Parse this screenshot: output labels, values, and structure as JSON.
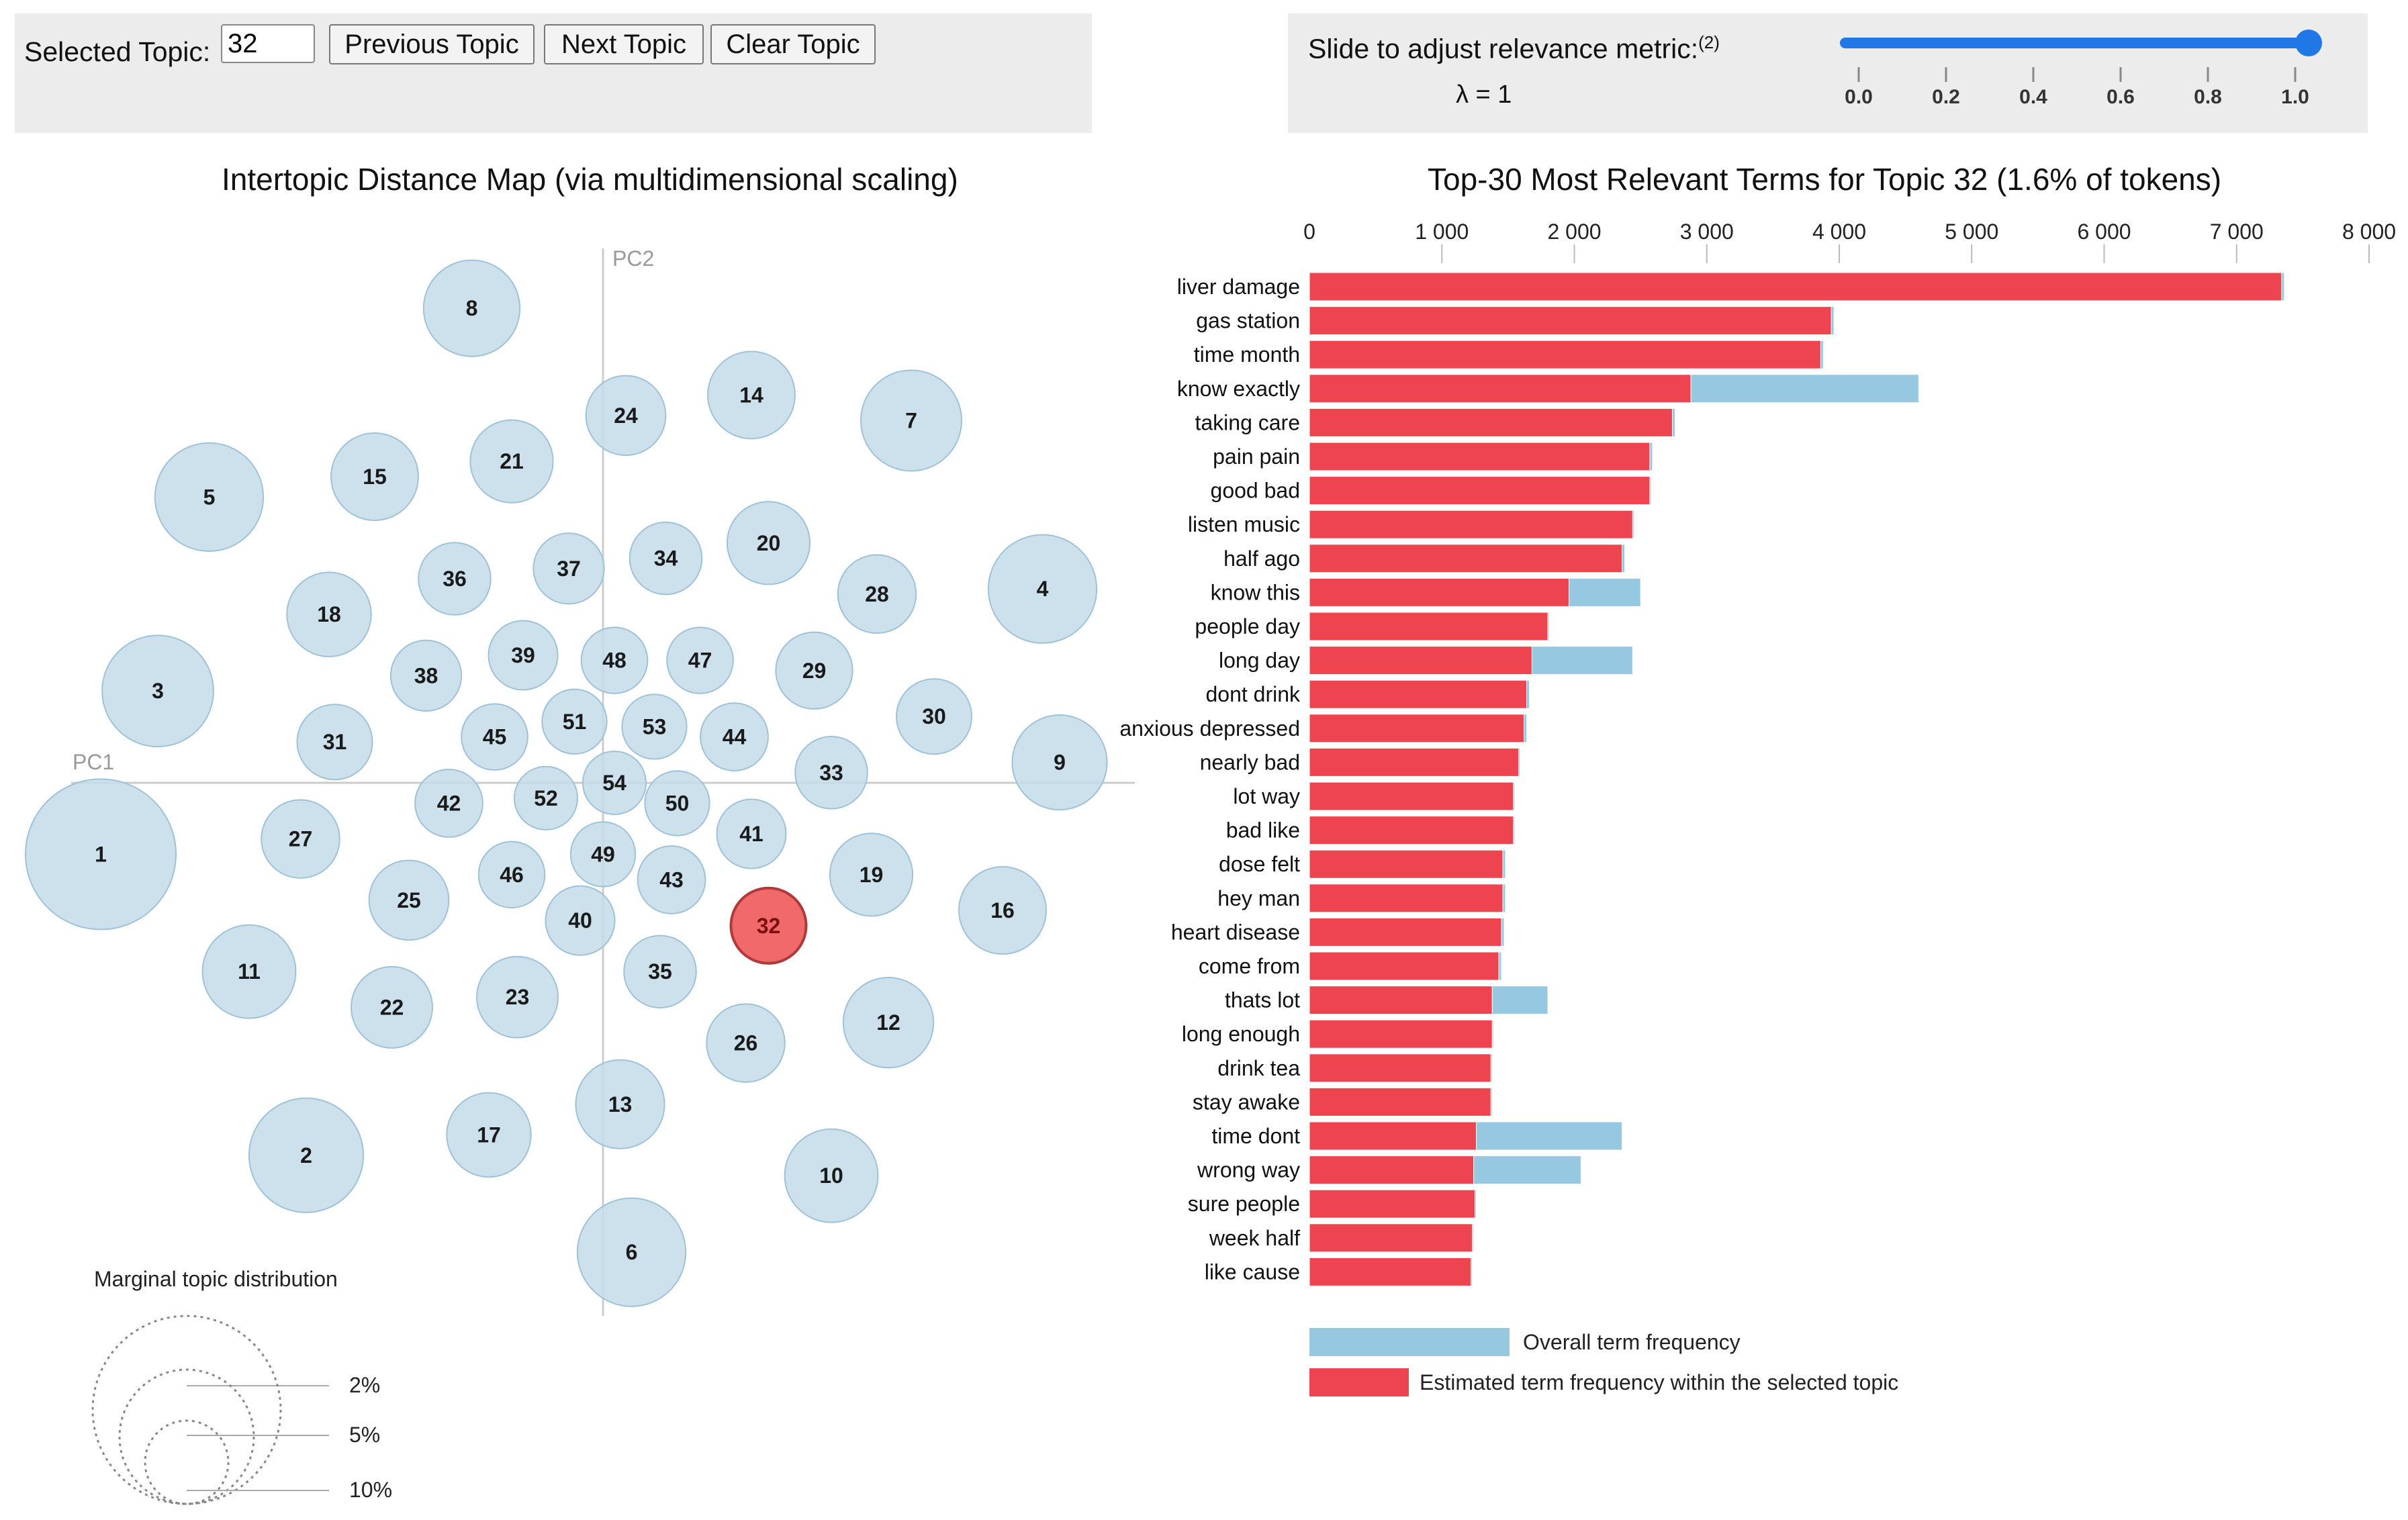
{
  "controls": {
    "selected_topic_label": "Selected Topic:",
    "selected_topic_value": "32",
    "previous_label": "Previous Topic",
    "next_label": "Next Topic",
    "clear_label": "Clear Topic",
    "slider_label": "Slide to adjust relevance metric:",
    "slider_footnote": "(2)",
    "lambda_text": "λ = 1",
    "slider_value": 1.0,
    "slider_ticks": [
      "0.0",
      "0.2",
      "0.4",
      "0.6",
      "0.8",
      "1.0"
    ]
  },
  "chart_data": [
    {
      "type": "scatter",
      "title": "Intertopic Distance Map (via multidimensional scaling)",
      "xlabel": "PC1",
      "ylabel": "PC2",
      "xlim": [
        -1,
        1
      ],
      "ylim": [
        -1,
        1
      ],
      "selected_topic": "32",
      "colors": {
        "bubble": "#c4dcea",
        "bubble_stroke": "#9fc2d8",
        "selected": "#f06a6a",
        "selected_stroke": "#b03a3a",
        "axis": "#cccccc"
      },
      "topics": [
        {
          "id": "1",
          "x": -0.88,
          "y": -0.14,
          "r": 1.0
        },
        {
          "id": "2",
          "x": -0.52,
          "y": -0.73,
          "r": 0.76
        },
        {
          "id": "3",
          "x": -0.78,
          "y": 0.18,
          "r": 0.74
        },
        {
          "id": "4",
          "x": 0.77,
          "y": 0.38,
          "r": 0.72
        },
        {
          "id": "5",
          "x": -0.69,
          "y": 0.56,
          "r": 0.72
        },
        {
          "id": "6",
          "x": 0.05,
          "y": -0.92,
          "r": 0.72
        },
        {
          "id": "7",
          "x": 0.54,
          "y": 0.71,
          "r": 0.67
        },
        {
          "id": "8",
          "x": -0.23,
          "y": 0.93,
          "r": 0.64
        },
        {
          "id": "9",
          "x": 0.8,
          "y": 0.04,
          "r": 0.63
        },
        {
          "id": "10",
          "x": 0.4,
          "y": -0.77,
          "r": 0.62
        },
        {
          "id": "11",
          "x": -0.62,
          "y": -0.37,
          "r": 0.62
        },
        {
          "id": "12",
          "x": 0.5,
          "y": -0.47,
          "r": 0.6
        },
        {
          "id": "13",
          "x": 0.03,
          "y": -0.63,
          "r": 0.59
        },
        {
          "id": "14",
          "x": 0.26,
          "y": 0.76,
          "r": 0.58
        },
        {
          "id": "15",
          "x": -0.4,
          "y": 0.6,
          "r": 0.58
        },
        {
          "id": "16",
          "x": 0.7,
          "y": -0.25,
          "r": 0.58
        },
        {
          "id": "17",
          "x": -0.2,
          "y": -0.69,
          "r": 0.56
        },
        {
          "id": "18",
          "x": -0.48,
          "y": 0.33,
          "r": 0.56
        },
        {
          "id": "19",
          "x": 0.47,
          "y": -0.18,
          "r": 0.55
        },
        {
          "id": "20",
          "x": 0.29,
          "y": 0.47,
          "r": 0.55
        },
        {
          "id": "21",
          "x": -0.16,
          "y": 0.63,
          "r": 0.55
        },
        {
          "id": "22",
          "x": -0.37,
          "y": -0.44,
          "r": 0.54
        },
        {
          "id": "23",
          "x": -0.15,
          "y": -0.42,
          "r": 0.54
        },
        {
          "id": "24",
          "x": 0.04,
          "y": 0.72,
          "r": 0.53
        },
        {
          "id": "25",
          "x": -0.34,
          "y": -0.23,
          "r": 0.53
        },
        {
          "id": "26",
          "x": 0.25,
          "y": -0.51,
          "r": 0.52
        },
        {
          "id": "27",
          "x": -0.53,
          "y": -0.11,
          "r": 0.52
        },
        {
          "id": "28",
          "x": 0.48,
          "y": 0.37,
          "r": 0.52
        },
        {
          "id": "29",
          "x": 0.37,
          "y": 0.22,
          "r": 0.51
        },
        {
          "id": "30",
          "x": 0.58,
          "y": 0.13,
          "r": 0.5
        },
        {
          "id": "31",
          "x": -0.47,
          "y": 0.08,
          "r": 0.5
        },
        {
          "id": "32",
          "x": 0.29,
          "y": -0.28,
          "r": 0.5
        },
        {
          "id": "33",
          "x": 0.4,
          "y": 0.02,
          "r": 0.48
        },
        {
          "id": "34",
          "x": 0.11,
          "y": 0.44,
          "r": 0.48
        },
        {
          "id": "35",
          "x": 0.1,
          "y": -0.37,
          "r": 0.48
        },
        {
          "id": "36",
          "x": -0.26,
          "y": 0.4,
          "r": 0.48
        },
        {
          "id": "37",
          "x": -0.06,
          "y": 0.42,
          "r": 0.47
        },
        {
          "id": "38",
          "x": -0.31,
          "y": 0.21,
          "r": 0.47
        },
        {
          "id": "39",
          "x": -0.14,
          "y": 0.25,
          "r": 0.46
        },
        {
          "id": "40",
          "x": -0.04,
          "y": -0.27,
          "r": 0.46
        },
        {
          "id": "41",
          "x": 0.26,
          "y": -0.1,
          "r": 0.46
        },
        {
          "id": "42",
          "x": -0.27,
          "y": -0.04,
          "r": 0.45
        },
        {
          "id": "43",
          "x": 0.12,
          "y": -0.19,
          "r": 0.45
        },
        {
          "id": "44",
          "x": 0.23,
          "y": 0.09,
          "r": 0.45
        },
        {
          "id": "45",
          "x": -0.19,
          "y": 0.09,
          "r": 0.44
        },
        {
          "id": "46",
          "x": -0.16,
          "y": -0.18,
          "r": 0.44
        },
        {
          "id": "47",
          "x": 0.17,
          "y": 0.24,
          "r": 0.44
        },
        {
          "id": "48",
          "x": 0.02,
          "y": 0.24,
          "r": 0.44
        },
        {
          "id": "49",
          "x": 0.0,
          "y": -0.14,
          "r": 0.43
        },
        {
          "id": "50",
          "x": 0.13,
          "y": -0.04,
          "r": 0.43
        },
        {
          "id": "51",
          "x": -0.05,
          "y": 0.12,
          "r": 0.43
        },
        {
          "id": "52",
          "x": -0.1,
          "y": -0.03,
          "r": 0.42
        },
        {
          "id": "53",
          "x": 0.09,
          "y": 0.11,
          "r": 0.43
        },
        {
          "id": "54",
          "x": 0.02,
          "y": 0.0,
          "r": 0.42
        }
      ],
      "legend": {
        "title": "Marginal topic distribution",
        "levels": [
          "2%",
          "5%",
          "10%"
        ]
      }
    },
    {
      "type": "bar",
      "orientation": "horizontal",
      "title": "Top-30 Most Relevant Terms for Topic 32 (1.6% of tokens)",
      "xlim": [
        0,
        8000
      ],
      "x_ticks": [
        0,
        1000,
        2000,
        3000,
        4000,
        5000,
        6000,
        7000,
        8000
      ],
      "x_tick_labels": [
        "0",
        "1 000",
        "2 000",
        "3 000",
        "4 000",
        "5 000",
        "6 000",
        "7 000",
        "8 000"
      ],
      "categories": [
        "liver damage",
        "gas station",
        "time month",
        "know exactly",
        "taking care",
        "pain pain",
        "good bad",
        "listen music",
        "half ago",
        "know this",
        "people day",
        "long day",
        "dont drink",
        "anxious depressed",
        "nearly bad",
        "lot way",
        "bad like",
        "dose felt",
        "hey man",
        "heart disease",
        "come from",
        "thats lot",
        "long enough",
        "drink tea",
        "stay awake",
        "time dont",
        "wrong way",
        "sure people",
        "week half",
        "like cause"
      ],
      "series": [
        {
          "name": "Overall term frequency",
          "color": "#96c8e2",
          "values": [
            7360,
            3960,
            3880,
            4600,
            2760,
            2590,
            2580,
            2450,
            2380,
            2500,
            1810,
            2440,
            1660,
            1640,
            1590,
            1550,
            1550,
            1480,
            1480,
            1470,
            1450,
            1800,
            1390,
            1380,
            1380,
            2360,
            2050,
            1260,
            1240,
            1230
          ]
        },
        {
          "name": "Estimated term frequency within the selected topic",
          "color": "#ee4450",
          "values": [
            7340,
            3940,
            3860,
            2880,
            2740,
            2570,
            2570,
            2440,
            2360,
            1960,
            1800,
            1680,
            1640,
            1620,
            1580,
            1540,
            1540,
            1460,
            1460,
            1450,
            1430,
            1380,
            1380,
            1370,
            1370,
            1260,
            1240,
            1250,
            1230,
            1220
          ]
        }
      ]
    }
  ]
}
